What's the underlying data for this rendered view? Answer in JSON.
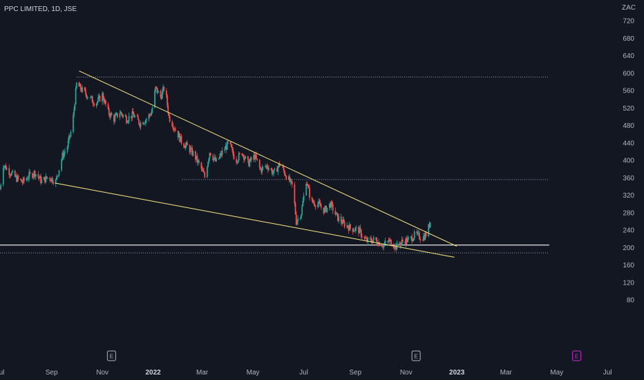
{
  "header": {
    "title": "PPC LIMITED, 1D, JSE",
    "currency": "ZAC"
  },
  "chart_data": {
    "type": "candlestick",
    "title": "PPC LIMITED, 1D, JSE",
    "currency": "ZAC",
    "x_range": [
      "2021-07-01",
      "2023-07-10"
    ],
    "ylim": [
      70,
      730
    ],
    "y_ticks": [
      720,
      680,
      640,
      600,
      560,
      520,
      480,
      440,
      400,
      360,
      320,
      280,
      240,
      200,
      160,
      120,
      80
    ],
    "x_ticks": [
      {
        "date": "2021-07-01",
        "label": "Jul",
        "bold": false
      },
      {
        "date": "2021-09-01",
        "label": "Sep",
        "bold": false
      },
      {
        "date": "2021-11-01",
        "label": "Nov",
        "bold": false
      },
      {
        "date": "2022-01-01",
        "label": "2022",
        "bold": true
      },
      {
        "date": "2022-03-01",
        "label": "Mar",
        "bold": false
      },
      {
        "date": "2022-05-01",
        "label": "May",
        "bold": false
      },
      {
        "date": "2022-07-01",
        "label": "Jul",
        "bold": false
      },
      {
        "date": "2022-09-01",
        "label": "Sep",
        "bold": false
      },
      {
        "date": "2022-11-01",
        "label": "Nov",
        "bold": false
      },
      {
        "date": "2023-01-01",
        "label": "2023",
        "bold": true
      },
      {
        "date": "2023-03-01",
        "label": "Mar",
        "bold": false
      },
      {
        "date": "2023-05-01",
        "label": "May",
        "bold": false
      },
      {
        "date": "2023-07-01",
        "label": "Jul",
        "bold": false
      }
    ],
    "price_path": [
      [
        "2021-07-01",
        335
      ],
      [
        "2021-07-05",
        390
      ],
      [
        "2021-07-12",
        375
      ],
      [
        "2021-07-20",
        360
      ],
      [
        "2021-07-28",
        350
      ],
      [
        "2021-08-05",
        365
      ],
      [
        "2021-08-12",
        372
      ],
      [
        "2021-08-20",
        352
      ],
      [
        "2021-08-28",
        362
      ],
      [
        "2021-09-06",
        352
      ],
      [
        "2021-09-14",
        410
      ],
      [
        "2021-09-20",
        432
      ],
      [
        "2021-09-26",
        480
      ],
      [
        "2021-10-01",
        575
      ],
      [
        "2021-10-08",
        560
      ],
      [
        "2021-10-16",
        545
      ],
      [
        "2021-10-24",
        530
      ],
      [
        "2021-11-01",
        550
      ],
      [
        "2021-11-08",
        510
      ],
      [
        "2021-11-15",
        495
      ],
      [
        "2021-11-22",
        510
      ],
      [
        "2021-11-30",
        495
      ],
      [
        "2021-12-08",
        505
      ],
      [
        "2021-12-16",
        485
      ],
      [
        "2021-12-24",
        495
      ],
      [
        "2021-12-30",
        510
      ],
      [
        "2022-01-04",
        565
      ],
      [
        "2022-01-10",
        545
      ],
      [
        "2022-01-15",
        570
      ],
      [
        "2022-01-20",
        500
      ],
      [
        "2022-01-28",
        470
      ],
      [
        "2022-02-05",
        440
      ],
      [
        "2022-02-12",
        430
      ],
      [
        "2022-02-20",
        410
      ],
      [
        "2022-02-28",
        380
      ],
      [
        "2022-03-04",
        362
      ],
      [
        "2022-03-10",
        420
      ],
      [
        "2022-03-18",
        395
      ],
      [
        "2022-03-25",
        418
      ],
      [
        "2022-04-02",
        440
      ],
      [
        "2022-04-10",
        400
      ],
      [
        "2022-04-18",
        418
      ],
      [
        "2022-04-25",
        392
      ],
      [
        "2022-05-03",
        410
      ],
      [
        "2022-05-10",
        378
      ],
      [
        "2022-05-18",
        388
      ],
      [
        "2022-05-26",
        370
      ],
      [
        "2022-06-02",
        392
      ],
      [
        "2022-06-10",
        365
      ],
      [
        "2022-06-18",
        338
      ],
      [
        "2022-06-22",
        260
      ],
      [
        "2022-06-28",
        280
      ],
      [
        "2022-07-04",
        355
      ],
      [
        "2022-07-10",
        305
      ],
      [
        "2022-07-18",
        300
      ],
      [
        "2022-07-26",
        285
      ],
      [
        "2022-08-02",
        300
      ],
      [
        "2022-08-10",
        270
      ],
      [
        "2022-08-18",
        255
      ],
      [
        "2022-08-26",
        245
      ],
      [
        "2022-09-05",
        240
      ],
      [
        "2022-09-14",
        215
      ],
      [
        "2022-09-24",
        218
      ],
      [
        "2022-10-04",
        206
      ],
      [
        "2022-10-12",
        215
      ],
      [
        "2022-10-20",
        202
      ],
      [
        "2022-10-28",
        215
      ],
      [
        "2022-11-05",
        218
      ],
      [
        "2022-11-12",
        230
      ],
      [
        "2022-11-20",
        222
      ],
      [
        "2022-11-26",
        232
      ],
      [
        "2022-11-30",
        260
      ]
    ],
    "annotations": {
      "trendlines": [
        {
          "from": [
            "2021-10-04",
            605
          ],
          "to": [
            "2023-01-01",
            203
          ],
          "color": "#e7d77a"
        },
        {
          "from": [
            "2021-09-05",
            348
          ],
          "to": [
            "2022-12-29",
            178
          ],
          "color": "#e7d77a"
        }
      ],
      "horizontal_solid": [
        {
          "y": 206,
          "from": "2021-07-01",
          "to": "2023-04-22",
          "color": "#e8e8e8"
        }
      ],
      "horizontal_dotted": [
        {
          "y": 591,
          "from": "2021-10-01",
          "to": "2023-04-22",
          "color": "#8fa3b0"
        },
        {
          "y": 356,
          "from": "2022-02-05",
          "to": "2023-04-22",
          "color": "#8fa3b0"
        },
        {
          "y": 188,
          "from": "2021-07-01",
          "to": "2023-04-22",
          "color": "#8fa3b0"
        }
      ]
    },
    "events": [
      {
        "date": "2021-11-12",
        "label": "E",
        "color": "#b2b5be"
      },
      {
        "date": "2022-11-13",
        "label": "E",
        "color": "#b2b5be"
      },
      {
        "date": "2023-05-25",
        "label": "E",
        "color": "#c133c8"
      }
    ]
  },
  "colors": {
    "background": "#131722",
    "up": "#26a69a",
    "down": "#ef5350",
    "text": "#b2b5be"
  }
}
